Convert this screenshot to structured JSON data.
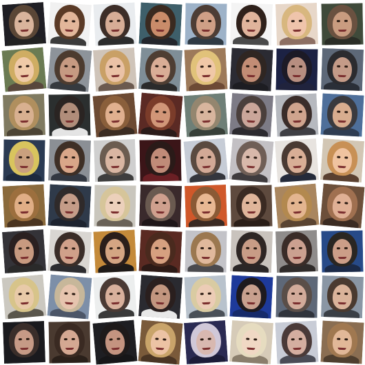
{
  "grid": {
    "rows": 8,
    "cols": 8,
    "tiles": [
      {
        "bg": "#1f1e24",
        "hair": "#5a4636",
        "skin": "#d9b49c",
        "top": "#222222"
      },
      {
        "bg": "#f1f1f1",
        "hair": "#5a3a26",
        "skin": "#e2b69a",
        "top": "#3b3b3b"
      },
      {
        "bg": "#e9ecef",
        "hair": "#3d2e28",
        "skin": "#d7ad96",
        "top": "#2c2c2c"
      },
      {
        "bg": "#3e5f6a",
        "hair": "#3a2a20",
        "skin": "#c98c6a",
        "top": "#23262c"
      },
      {
        "bg": "#9db2c8",
        "hair": "#4d3d35",
        "skin": "#cf9f86",
        "top": "#2f3a44"
      },
      {
        "bg": "#f4f4f4",
        "hair": "#2f211b",
        "skin": "#e0b49c",
        "top": "#4a4a4a"
      },
      {
        "bg": "#e7d7c9",
        "hair": "#d8b77f",
        "skin": "#efc4ab",
        "top": "#8d6f63"
      },
      {
        "bg": "#3f4a3a",
        "hair": "#6a5140",
        "skin": "#c99c80",
        "top": "#2a2d26"
      },
      {
        "bg": "#6b7b53",
        "hair": "#cfad63",
        "skin": "#efcaa8",
        "top": "#58473c"
      },
      {
        "bg": "#8d939a",
        "hair": "#4c3b2f",
        "skin": "#c69a82",
        "top": "#363a3f"
      },
      {
        "bg": "#cfc4b9",
        "hair": "#c9a066",
        "skin": "#eac2a6",
        "top": "#6b5a4f"
      },
      {
        "bg": "#7f8e97",
        "hair": "#4e3e33",
        "skin": "#d9ad96",
        "top": "#2b2b2b"
      },
      {
        "bg": "#9d7a5a",
        "hair": "#e1c27a",
        "skin": "#f0c8a7",
        "top": "#6d4a35"
      },
      {
        "bg": "#2b2b33",
        "hair": "#2f2622",
        "skin": "#c28d75",
        "top": "#1d1d22"
      },
      {
        "bg": "#1c2244",
        "hair": "#1c1a26",
        "skin": "#b78e80",
        "top": "#20233d"
      },
      {
        "bg": "#5d6878",
        "hair": "#2b2b2f",
        "skin": "#c49b88",
        "top": "#2a2f38"
      },
      {
        "bg": "#7f7a61",
        "hair": "#b08f5e",
        "skin": "#d8b090",
        "top": "#4c4435"
      },
      {
        "bg": "#2b2f2f",
        "hair": "#2a2422",
        "skin": "#b08d7a",
        "top": "#e4e4e4"
      },
      {
        "bg": "#6c4a33",
        "hair": "#8a5f3b",
        "skin": "#e0b08f",
        "top": "#3b2c22"
      },
      {
        "bg": "#5b2a24",
        "hair": "#7b3c2a",
        "skin": "#d19678",
        "top": "#2b1c1a"
      },
      {
        "bg": "#6e7f77",
        "hair": "#94866f",
        "skin": "#d8b59e",
        "top": "#384039"
      },
      {
        "bg": "#7d7b86",
        "hair": "#4a3f3c",
        "skin": "#caa69a",
        "top": "#2c2a2f"
      },
      {
        "bg": "#b6b9bf",
        "hair": "#3a2d2a",
        "skin": "#cfa48e",
        "top": "#3f3f44"
      },
      {
        "bg": "#4e6f9a",
        "hair": "#3a3a3e",
        "skin": "#d8ad8f",
        "top": "#2f3d52"
      },
      {
        "bg": "#2a3a52",
        "hair": "#d8c45e",
        "skin": "#caa07e",
        "top": "#1d2a3e"
      },
      {
        "bg": "#8b8f95",
        "hair": "#3e2f26",
        "skin": "#d9a689",
        "top": "#333842"
      },
      {
        "bg": "#cfcfcf",
        "hair": "#6b5c50",
        "skin": "#d9b6a2",
        "top": "#3e3e3e"
      },
      {
        "bg": "#3b1518",
        "hair": "#2a1a18",
        "skin": "#c08b78",
        "top": "#6a1f24"
      },
      {
        "bg": "#c6ccd6",
        "hair": "#5a4a40",
        "skin": "#d2a996",
        "top": "#34363d"
      },
      {
        "bg": "#c3c0c4",
        "hair": "#6f5e56",
        "skin": "#d8b8aa",
        "top": "#3f3b3e"
      },
      {
        "bg": "#e7e3df",
        "hair": "#4a3a33",
        "skin": "#d8ae96",
        "top": "#242a3a"
      },
      {
        "bg": "#d2c6b4",
        "hair": "#c89055",
        "skin": "#f0c3a0",
        "top": "#5a4030"
      },
      {
        "bg": "#8a6a3c",
        "hair": "#9c6f3e",
        "skin": "#e0ae86",
        "top": "#4a3420"
      },
      {
        "bg": "#2f3a4a",
        "hair": "#2f2a2a",
        "skin": "#c49c88",
        "top": "#1e2430"
      },
      {
        "bg": "#c9c6bd",
        "hair": "#d6c59a",
        "skin": "#ecd0bb",
        "top": "#6a6258"
      },
      {
        "bg": "#3a2a2c",
        "hair": "#6a5a50",
        "skin": "#cfa08e",
        "top": "#1f1719"
      },
      {
        "bg": "#d0582a",
        "hair": "#8a5a35",
        "skin": "#e8b893",
        "top": "#3b2a22"
      },
      {
        "bg": "#5e4a3e",
        "hair": "#3a2a22",
        "skin": "#dfb59a",
        "top": "#2a1e18"
      },
      {
        "bg": "#a9865f",
        "hair": "#b3894f",
        "skin": "#e3b590",
        "top": "#5a4432"
      },
      {
        "bg": "#6c4f3a",
        "hair": "#a07050",
        "skin": "#e0b095",
        "top": "#3b2b22"
      },
      {
        "bg": "#343338",
        "hair": "#2a2020",
        "skin": "#c89a80",
        "top": "#2a2a2a"
      },
      {
        "bg": "#d9d6d2",
        "hair": "#3a2d28",
        "skin": "#d0a08a",
        "top": "#2c2c30"
      },
      {
        "bg": "#c48a3a",
        "hair": "#2a1e1a",
        "skin": "#d4a583",
        "top": "#1e1a18"
      },
      {
        "bg": "#5a2a22",
        "hair": "#4a2a1e",
        "skin": "#d6a080",
        "top": "#2c1a16"
      },
      {
        "bg": "#c3c3c8",
        "hair": "#9b7850",
        "skin": "#e0b99c",
        "top": "#4a4a4e"
      },
      {
        "bg": "#c9c3bd",
        "hair": "#2e2624",
        "skin": "#c89c86",
        "top": "#2a2626"
      },
      {
        "bg": "#8f8c8b",
        "hair": "#3a2c28",
        "skin": "#cba090",
        "top": "#2f2b2a"
      },
      {
        "bg": "#274a88",
        "hair": "#2a2622",
        "skin": "#cc9e88",
        "top": "#1b2a48"
      },
      {
        "bg": "#cbc8c0",
        "hair": "#d7c48a",
        "skin": "#e8caa8",
        "top": "#5a564c"
      },
      {
        "bg": "#7d8fa8",
        "hair": "#c7b79a",
        "skin": "#e6c4ae",
        "top": "#4c5668"
      },
      {
        "bg": "#eceeee",
        "hair": "#4a3a34",
        "skin": "#d8b09c",
        "top": "#3a3a3a"
      },
      {
        "bg": "#2a2a30",
        "hair": "#2a1f1e",
        "skin": "#c2967f",
        "top": "#e8e8e8"
      },
      {
        "bg": "#b8c2cc",
        "hair": "#d9cba2",
        "skin": "#ecccb6",
        "top": "#4a5058"
      },
      {
        "bg": "#1e3a9a",
        "hair": "#1e1a1e",
        "skin": "#c8a08e",
        "top": "#162a6a"
      },
      {
        "bg": "#5e6878",
        "hair": "#5a4e48",
        "skin": "#d2ab9a",
        "top": "#30343c"
      },
      {
        "bg": "#8a96a4",
        "hair": "#4a3a30",
        "skin": "#dab39a",
        "top": "#3a3f46"
      },
      {
        "bg": "#1a1a1e",
        "hair": "#3a2e2a",
        "skin": "#c69a86",
        "top": "#1a1a1e"
      },
      {
        "bg": "#4a3a30",
        "hair": "#3a2a22",
        "skin": "#d4a892",
        "top": "#2a201a"
      },
      {
        "bg": "#1e1e22",
        "hair": "#1e1a1a",
        "skin": "#c49480",
        "top": "#161618"
      },
      {
        "bg": "#7a5a3a",
        "hair": "#c9a46a",
        "skin": "#ecc3a4",
        "top": "#4a3524"
      },
      {
        "bg": "#2a2a52",
        "hair": "#d0c8d8",
        "skin": "#d8b8b0",
        "top": "#1c1c38"
      },
      {
        "bg": "#d6cbb8",
        "hair": "#e6dcc0",
        "skin": "#f0d8c4",
        "top": "#8a7e6c"
      },
      {
        "bg": "#c8ccd6",
        "hair": "#4a3a38",
        "skin": "#d4aea0",
        "top": "#4a4c56"
      },
      {
        "bg": "#8a6e52",
        "hair": "#a07850",
        "skin": "#e2b898",
        "top": "#4e3e2e"
      }
    ]
  }
}
